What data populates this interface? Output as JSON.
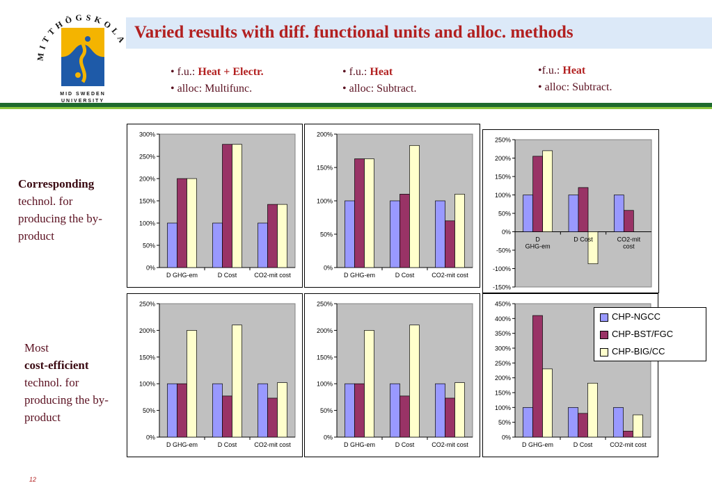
{
  "header": {
    "title": "Varied results with diff. functional units and alloc. methods",
    "logo_top_text": "MITTHÖGSKOLAN",
    "logo_bottom_line1": "MID SWEDEN",
    "logo_bottom_line2": "UNIVERSITY"
  },
  "methods": [
    {
      "fu_label": "• f.u.: ",
      "fu_value": "Heat + Electr.",
      "alloc": "• alloc: Multifunc."
    },
    {
      "fu_label": "• f.u.: ",
      "fu_value": "Heat",
      "alloc": "• alloc: Subtract."
    },
    {
      "fu_label": "•f.u.: ",
      "fu_value": "Heat",
      "alloc": "• alloc: Subtract."
    }
  ],
  "row_labels": {
    "top": {
      "line1_bold": "Corresponding",
      "line2": "technol. for",
      "line3": "producing the by-",
      "line4": "product"
    },
    "bottom": {
      "line1": "Most",
      "line2_bold": "cost-efficient",
      "line3": "technol. for",
      "line4": "producing the by-",
      "line5": "product"
    }
  },
  "legend": [
    {
      "name": "CHP-NGCC",
      "color": "#9999ff"
    },
    {
      "name": "CHP-BST/FGC",
      "color": "#993366"
    },
    {
      "name": "CHP-BIG/CC",
      "color": "#ffffcc"
    }
  ],
  "page_number": "12",
  "colors": {
    "title": "#b22020",
    "plot_bg": "#c0c0c0",
    "band_dark": "#1e6a2e",
    "band_light": "#8cc63f"
  },
  "chart_data": [
    {
      "type": "bar",
      "categories": [
        "D GHG-em",
        "D Cost",
        "CO2-mit cost"
      ],
      "series": [
        {
          "name": "CHP-NGCC",
          "values": [
            100,
            100,
            100
          ]
        },
        {
          "name": "CHP-BST/FGC",
          "values": [
            200,
            277,
            142
          ]
        },
        {
          "name": "CHP-BIG/CC",
          "values": [
            200,
            277,
            142
          ]
        }
      ],
      "ylim": [
        0,
        300
      ],
      "yticks": [
        0,
        50,
        100,
        150,
        200,
        250,
        300
      ],
      "ytick_labels": [
        "0%",
        "50%",
        "100%",
        "150%",
        "200%",
        "250%",
        "300%"
      ],
      "grid": false
    },
    {
      "type": "bar",
      "categories": [
        "D GHG-em",
        "D Cost",
        "CO2-mit cost"
      ],
      "series": [
        {
          "name": "CHP-NGCC",
          "values": [
            100,
            100,
            100
          ]
        },
        {
          "name": "CHP-BST/FGC",
          "values": [
            163,
            110,
            70
          ]
        },
        {
          "name": "CHP-BIG/CC",
          "values": [
            163,
            183,
            110
          ]
        }
      ],
      "ylim": [
        0,
        200
      ],
      "yticks": [
        0,
        50,
        100,
        150,
        200
      ],
      "ytick_labels": [
        "0%",
        "50%",
        "100%",
        "150%",
        "200%"
      ],
      "grid": false
    },
    {
      "type": "bar",
      "categories": [
        "D GHG-em",
        "D Cost",
        "CO2-mit cost"
      ],
      "series": [
        {
          "name": "CHP-NGCC",
          "values": [
            100,
            100,
            100
          ]
        },
        {
          "name": "CHP-BST/FGC",
          "values": [
            205,
            120,
            58
          ]
        },
        {
          "name": "CHP-BIG/CC",
          "values": [
            220,
            -87,
            0
          ]
        }
      ],
      "ylim": [
        -150,
        250
      ],
      "yticks": [
        -150,
        -100,
        -50,
        0,
        50,
        100,
        150,
        200,
        250
      ],
      "ytick_labels": [
        "-150%",
        "-100%",
        "-50%",
        "0%",
        "50%",
        "100%",
        "150%",
        "200%",
        "250%"
      ],
      "grid": false
    },
    {
      "type": "bar",
      "categories": [
        "D GHG-em",
        "D Cost",
        "CO2-mit cost"
      ],
      "series": [
        {
          "name": "CHP-NGCC",
          "values": [
            100,
            100,
            100
          ]
        },
        {
          "name": "CHP-BST/FGC",
          "values": [
            100,
            77,
            73
          ]
        },
        {
          "name": "CHP-BIG/CC",
          "values": [
            200,
            210,
            102
          ]
        }
      ],
      "ylim": [
        0,
        250
      ],
      "yticks": [
        0,
        50,
        100,
        150,
        200,
        250
      ],
      "ytick_labels": [
        "0%",
        "50%",
        "100%",
        "150%",
        "200%",
        "250%"
      ],
      "grid": false
    },
    {
      "type": "bar",
      "categories": [
        "D GHG-em",
        "D Cost",
        "CO2-mit cost"
      ],
      "series": [
        {
          "name": "CHP-NGCC",
          "values": [
            100,
            100,
            100
          ]
        },
        {
          "name": "CHP-BST/FGC",
          "values": [
            100,
            77,
            73
          ]
        },
        {
          "name": "CHP-BIG/CC",
          "values": [
            200,
            210,
            102
          ]
        }
      ],
      "ylim": [
        0,
        250
      ],
      "yticks": [
        0,
        50,
        100,
        150,
        200,
        250
      ],
      "ytick_labels": [
        "0%",
        "50%",
        "100%",
        "150%",
        "200%",
        "250%"
      ],
      "grid": false
    },
    {
      "type": "bar",
      "categories": [
        "D GHG-em",
        "D Cost",
        "CO2-mit cost"
      ],
      "series": [
        {
          "name": "CHP-NGCC",
          "values": [
            100,
            100,
            100
          ]
        },
        {
          "name": "CHP-BST/FGC",
          "values": [
            410,
            80,
            20
          ]
        },
        {
          "name": "CHP-BIG/CC",
          "values": [
            230,
            182,
            75
          ]
        }
      ],
      "ylim": [
        0,
        450
      ],
      "yticks": [
        0,
        50,
        100,
        150,
        200,
        250,
        300,
        350,
        400,
        450
      ],
      "ytick_labels": [
        "0%",
        "50%",
        "100%",
        "150%",
        "200%",
        "250%",
        "300%",
        "350%",
        "400%",
        "450%"
      ],
      "grid": false
    }
  ]
}
